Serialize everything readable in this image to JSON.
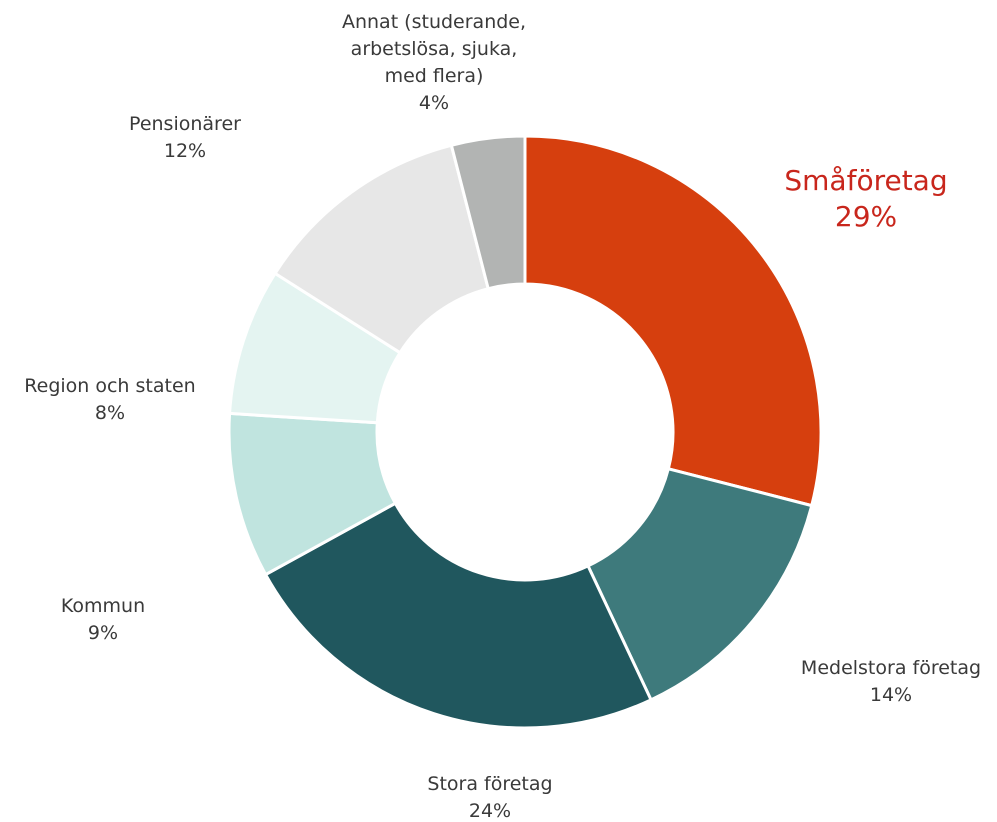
{
  "chart_data": {
    "type": "pie",
    "style": "donut",
    "title": "",
    "highlight_color": "#c8261c",
    "slices": [
      {
        "label": "Småföretag",
        "value": 29,
        "value_label": "29%",
        "color": "#d63f0e",
        "highlight": true
      },
      {
        "label": "Medelstora företag",
        "value": 14,
        "value_label": "14%",
        "color": "#3e7a7c",
        "highlight": false
      },
      {
        "label": "Stora företag",
        "value": 24,
        "value_label": "24%",
        "color": "#20575e",
        "highlight": false
      },
      {
        "label": "Kommun",
        "value": 9,
        "value_label": "9%",
        "color": "#c0e4df",
        "highlight": false
      },
      {
        "label": "Region och staten",
        "value": 8,
        "value_label": "8%",
        "color": "#e4f4f1",
        "highlight": false
      },
      {
        "label": "Pensionärer",
        "value": 12,
        "value_label": "12%",
        "color": "#e7e7e7",
        "highlight": false
      },
      {
        "label": "Annat (studerande, arbetslösa, sjuka, med flera)",
        "label_lines": [
          "Annat (studerande,",
          "arbetslösa, sjuka,",
          "med flera)"
        ],
        "value": 4,
        "value_label": "4%",
        "color": "#b2b4b3",
        "highlight": false
      }
    ]
  }
}
